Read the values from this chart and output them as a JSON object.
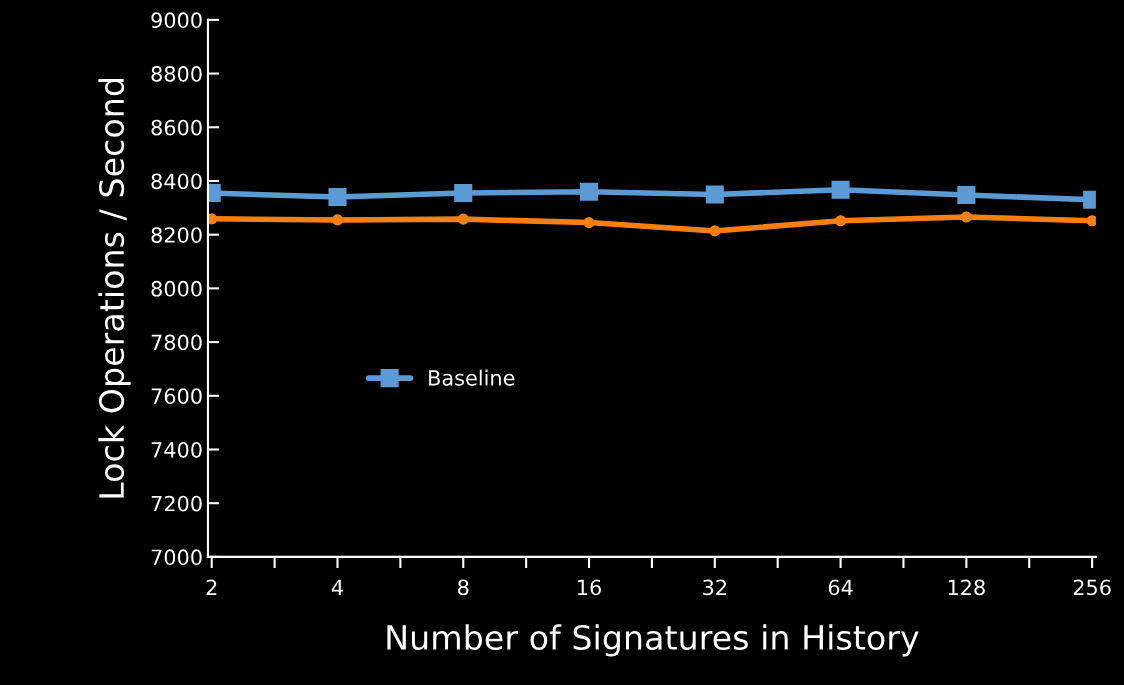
{
  "chart_data": {
    "type": "line",
    "xlabel": "Number of Signatures in History",
    "ylabel": "Lock Operations / Second",
    "categories": [
      "2",
      "4",
      "8",
      "16",
      "32",
      "64",
      "128",
      "256"
    ],
    "series": [
      {
        "name": "Baseline",
        "color": "#5b9bd5",
        "marker": "square",
        "values": [
          8355,
          8340,
          8355,
          8360,
          8350,
          8367,
          8348,
          8330
        ]
      },
      {
        "color": "#ff7f0e",
        "marker": "circle",
        "values": [
          8259,
          8255,
          8258,
          8245,
          8214,
          8252,
          8266,
          8252
        ]
      }
    ],
    "ylim": [
      7000,
      9000
    ],
    "yticks": [
      7000,
      7200,
      7400,
      7600,
      7800,
      8000,
      8200,
      8400,
      8600,
      8800,
      9000
    ],
    "grid": false,
    "legend": "left"
  }
}
